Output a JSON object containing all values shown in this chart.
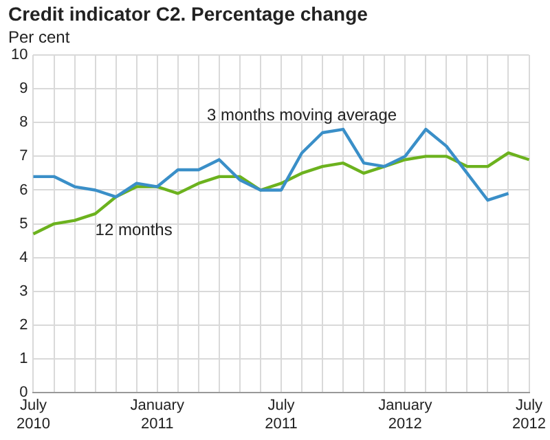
{
  "chart_data": {
    "type": "line",
    "title": "Credit indicator C2. Percentage change",
    "ylabel": "Per cent",
    "categories": [
      "July 2010",
      null,
      null,
      null,
      null,
      null,
      "January 2011",
      null,
      null,
      null,
      null,
      null,
      "July 2011",
      null,
      null,
      null,
      null,
      null,
      "January 2012",
      null,
      null,
      null,
      null,
      null,
      "July 2012"
    ],
    "series": [
      {
        "name": "3 months moving average",
        "color": "#3a8fc8",
        "values": [
          6.4,
          6.4,
          6.1,
          6.0,
          5.8,
          6.2,
          6.1,
          6.6,
          6.6,
          6.9,
          6.3,
          6.0,
          6.0,
          7.1,
          7.7,
          7.8,
          6.8,
          6.7,
          7.0,
          7.8,
          7.3,
          6.5,
          5.7,
          5.9,
          null
        ]
      },
      {
        "name": "12 months",
        "color": "#6cb21e",
        "values": [
          4.7,
          5.0,
          5.1,
          5.3,
          5.8,
          6.1,
          6.1,
          5.9,
          6.2,
          6.4,
          6.4,
          6.0,
          6.2,
          6.5,
          6.7,
          6.8,
          6.5,
          6.7,
          6.9,
          7.0,
          7.0,
          6.7,
          6.7,
          7.1,
          6.9
        ]
      }
    ],
    "ylim": [
      0,
      10
    ],
    "yticks": [
      0,
      1,
      2,
      3,
      4,
      5,
      6,
      7,
      8,
      9,
      10
    ],
    "grid": true,
    "legend": false,
    "marker": "none",
    "line_style": "solid"
  }
}
